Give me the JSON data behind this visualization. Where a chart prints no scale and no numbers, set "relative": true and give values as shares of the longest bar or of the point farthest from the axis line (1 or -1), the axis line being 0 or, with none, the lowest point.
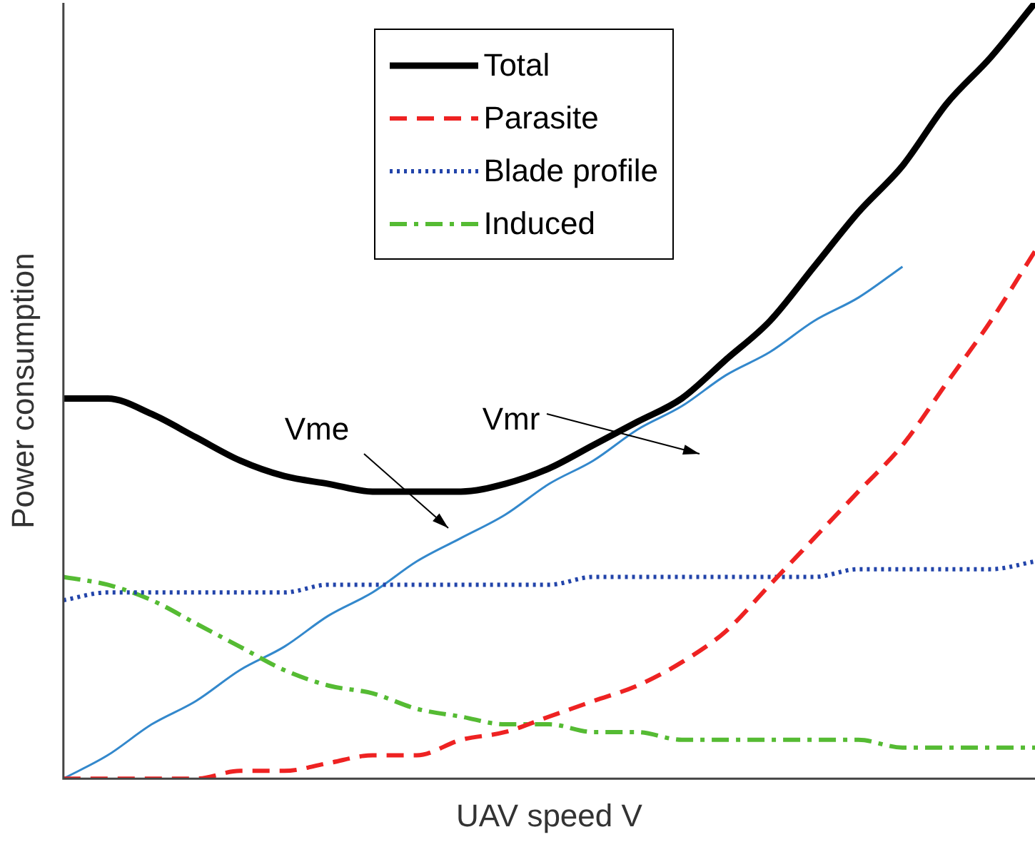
{
  "chart_data": {
    "type": "line",
    "relative": true,
    "xlabel": "UAV speed V",
    "ylabel": "Power consumption",
    "grid": false,
    "legend": "top",
    "tick_labels": false,
    "marker": "none",
    "categories": [
      null,
      null,
      null,
      null,
      null,
      null,
      null,
      null,
      null,
      null,
      null,
      null,
      null,
      null,
      null,
      null,
      null,
      null,
      null,
      null,
      null,
      null,
      null
    ],
    "series": [
      {
        "name": "Total",
        "color": "#000000",
        "line_style": "solid",
        "values": [
          0.49,
          0.49,
          0.47,
          0.44,
          0.41,
          0.39,
          0.38,
          0.37,
          0.37,
          0.37,
          0.38,
          0.4,
          0.43,
          0.46,
          0.49,
          0.54,
          0.59,
          0.66,
          0.73,
          0.79,
          0.87,
          0.93,
          1
        ]
      },
      {
        "name": "Parasite",
        "color": "#ee2222",
        "line_style": "dashed",
        "values": [
          0,
          0,
          0,
          0,
          0.01,
          0.01,
          0.02,
          0.03,
          0.03,
          0.05,
          0.06,
          0.08,
          0.1,
          0.12,
          0.15,
          0.19,
          0.25,
          0.31,
          0.37,
          0.43,
          0.51,
          0.59,
          0.68
        ]
      },
      {
        "name": "Blade profile",
        "color": "#2244aa",
        "line_style": "dotted",
        "values": [
          0.23,
          0.24,
          0.24,
          0.24,
          0.24,
          0.24,
          0.25,
          0.25,
          0.25,
          0.25,
          0.25,
          0.25,
          0.26,
          0.26,
          0.26,
          0.26,
          0.26,
          0.26,
          0.27,
          0.27,
          0.27,
          0.27,
          0.28
        ]
      },
      {
        "name": "Induced",
        "color": "#55bb33",
        "line_style": "dashdot",
        "values": [
          0.26,
          0.25,
          0.23,
          0.2,
          0.17,
          0.14,
          0.12,
          0.11,
          0.09,
          0.08,
          0.07,
          0.07,
          0.06,
          0.06,
          0.05,
          0.05,
          0.05,
          0.05,
          0.05,
          0.04,
          0.04,
          0.04,
          0.04
        ]
      },
      {
        "color": "#3388cc",
        "line_style": "solid",
        "values": [
          0,
          0.03,
          0.07,
          0.1,
          0.14,
          0.17,
          0.21,
          0.24,
          0.28,
          0.31,
          0.34,
          0.38,
          0.41,
          0.45,
          0.48,
          0.52,
          0.55,
          0.59,
          0.62,
          0.66,
          null,
          null,
          null
        ]
      }
    ],
    "annotations": [
      "Vme",
      "Vmr"
    ]
  }
}
